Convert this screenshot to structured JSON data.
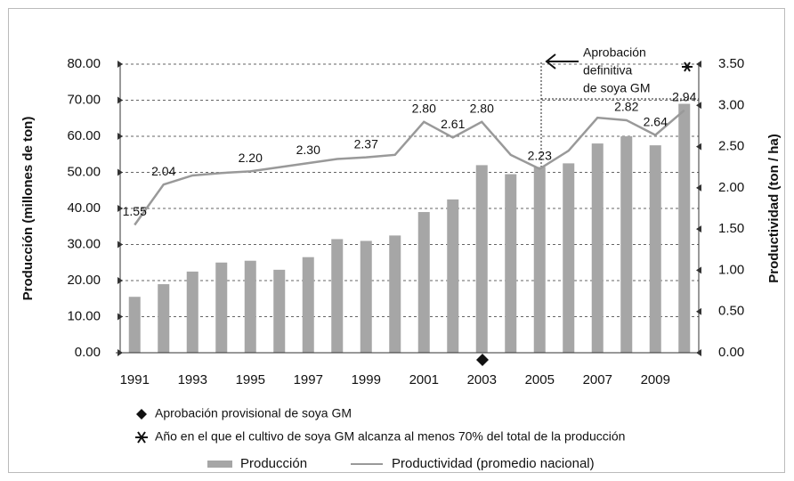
{
  "chart_data": {
    "type": "bar_line",
    "categories": [
      "1991",
      null,
      "1993",
      null,
      "1995",
      null,
      "1997",
      null,
      "1999",
      null,
      "2001",
      null,
      "2003",
      null,
      "2005",
      null,
      "2007",
      null,
      "2009",
      null
    ],
    "series": [
      {
        "name": "Producción",
        "type": "bar",
        "color": "#a6a6a6",
        "values": [
          15.5,
          19,
          22.5,
          25,
          25.5,
          23,
          26.5,
          31.5,
          31,
          32.5,
          39,
          42.5,
          52,
          49.5,
          51.5,
          52.5,
          58,
          60,
          57.5,
          69
        ]
      },
      {
        "name": "Productividad (promedio nacional)",
        "type": "line",
        "axis": "y2",
        "color": "#999999",
        "values": [
          1.55,
          2.04,
          2.15,
          2.18,
          2.2,
          2.25,
          2.3,
          2.35,
          2.37,
          2.4,
          2.8,
          2.61,
          2.8,
          2.4,
          2.23,
          2.45,
          2.85,
          2.82,
          2.64,
          2.94
        ],
        "value_labels": [
          "1.55",
          "2.04",
          null,
          null,
          "2.20",
          null,
          "2.30",
          null,
          "2.37",
          null,
          "2.80",
          "2.61",
          "2.80",
          null,
          "2.23",
          null,
          null,
          "2.82",
          "2.64",
          "2.94"
        ]
      }
    ],
    "ylabel": "Producción (millones de ton)",
    "y2label": "Productividad (ton / ha)",
    "ylim": [
      0,
      80
    ],
    "yticks": [
      {
        "value": 0,
        "label": "0.00"
      },
      {
        "value": 10,
        "label": "10.00"
      },
      {
        "value": 20,
        "label": "20.00"
      },
      {
        "value": 30,
        "label": "30.00"
      },
      {
        "value": 40,
        "label": "40.00"
      },
      {
        "value": 50,
        "label": "50.00"
      },
      {
        "value": 60,
        "label": "60.00"
      },
      {
        "value": 70,
        "label": "70.00"
      },
      {
        "value": 80,
        "label": "80.00"
      }
    ],
    "y2lim": [
      0,
      3.5
    ],
    "y2ticks": [
      {
        "value": 0,
        "label": "0.00"
      },
      {
        "value": 0.5,
        "label": "0.50"
      },
      {
        "value": 1,
        "label": "1.00"
      },
      {
        "value": 1.5,
        "label": "1.50"
      },
      {
        "value": 2,
        "label": "2.00"
      },
      {
        "value": 2.5,
        "label": "2.50"
      },
      {
        "value": 3,
        "label": "3.00"
      },
      {
        "value": 3.5,
        "label": "3.50"
      }
    ],
    "grid": true,
    "annotations": [
      "Aprobación",
      "definitiva",
      "de soya GM"
    ],
    "notes": [
      "Aprobación provisional de soya GM",
      "Año en el que el cultivo de soya GM alcanza al menos 70% del total de la producción"
    ]
  }
}
